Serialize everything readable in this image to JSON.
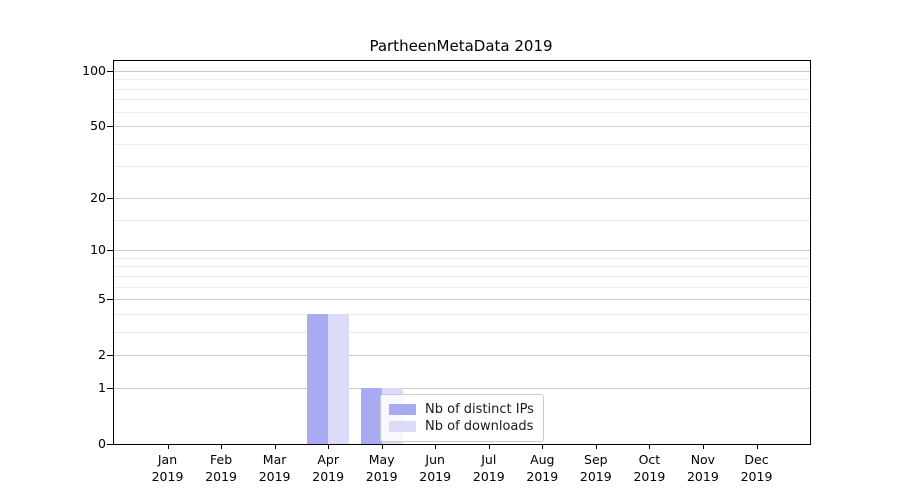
{
  "chart_data": {
    "type": "bar",
    "title": "PartheenMetaData 2019",
    "categories": [
      "Jan",
      "Feb",
      "Mar",
      "Apr",
      "May",
      "Jun",
      "Jul",
      "Aug",
      "Sep",
      "Oct",
      "Nov",
      "Dec"
    ],
    "category_year": "2019",
    "series": [
      {
        "name": "Nb of distinct IPs",
        "color": "#aaaaf2",
        "values": [
          0,
          0,
          0,
          4,
          1,
          0,
          0,
          0,
          0,
          0,
          0,
          0
        ]
      },
      {
        "name": "Nb of downloads",
        "color": "#dcdcfa",
        "values": [
          0,
          0,
          0,
          4,
          1,
          0,
          0,
          0,
          0,
          0,
          0,
          0
        ]
      }
    ],
    "yscale": "log1p",
    "ylim": [
      0,
      113
    ],
    "y_major_ticks": [
      0,
      1,
      2,
      5,
      10,
      20,
      50,
      100
    ],
    "y_minor_ticks": [
      3,
      4,
      6,
      7,
      8,
      9,
      15,
      30,
      40,
      60,
      70,
      80,
      90
    ],
    "grid": true,
    "legend": {
      "position": "lower center",
      "entries": [
        "Nb of distinct IPs",
        "Nb of downloads"
      ]
    }
  },
  "styles": {
    "major_grid_color": "#cdcdcd",
    "minor_grid_color": "#ececec",
    "axis_color": "#000000",
    "background_color": "#ffffff"
  }
}
